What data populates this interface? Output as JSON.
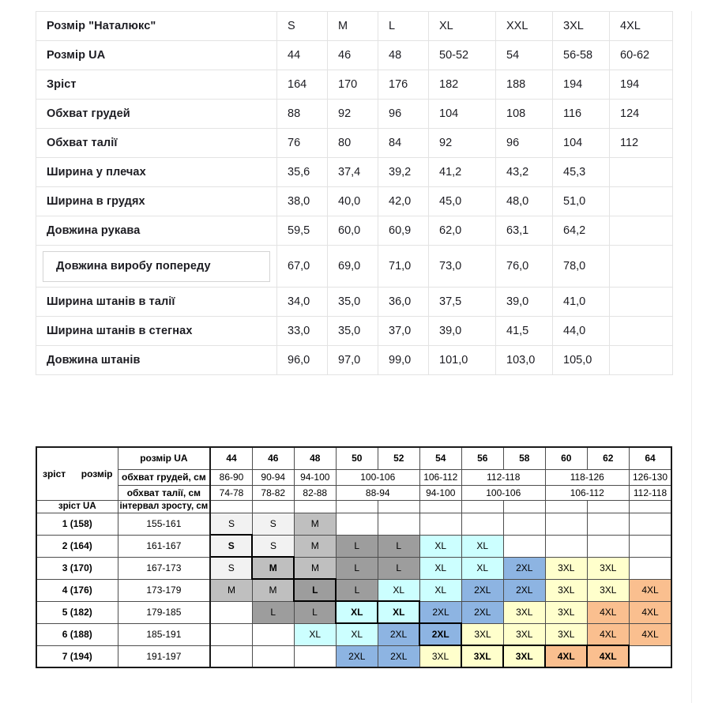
{
  "top_table": {
    "rows": [
      {
        "label": "Розмір \"Наталюкс\"",
        "boxed": false,
        "values": [
          "S",
          "M",
          "L",
          "XL",
          "XXL",
          "3XL",
          "4XL"
        ]
      },
      {
        "label": "Розмір UA",
        "boxed": false,
        "values": [
          "44",
          "46",
          "48",
          "50-52",
          "54",
          "56-58",
          "60-62"
        ]
      },
      {
        "label": "Зріст",
        "boxed": false,
        "values": [
          "164",
          "170",
          "176",
          "182",
          "188",
          "194",
          "194"
        ]
      },
      {
        "label": "Обхват грудей",
        "boxed": false,
        "values": [
          "88",
          "92",
          "96",
          "104",
          "108",
          "116",
          "124"
        ]
      },
      {
        "label": "Обхват талії",
        "boxed": false,
        "values": [
          "76",
          "80",
          "84",
          "92",
          "96",
          "104",
          "112"
        ]
      },
      {
        "label": "Ширина у плечах",
        "boxed": false,
        "values": [
          "35,6",
          "37,4",
          "39,2",
          "41,2",
          "43,2",
          "45,3",
          ""
        ]
      },
      {
        "label": "Ширина в грудях",
        "boxed": false,
        "values": [
          "38,0",
          "40,0",
          "42,0",
          "45,0",
          "48,0",
          "51,0",
          ""
        ]
      },
      {
        "label": "Довжина рукава",
        "boxed": false,
        "values": [
          "59,5",
          "60,0",
          "60,9",
          "62,0",
          "63,1",
          "64,2",
          ""
        ]
      },
      {
        "label": "Довжина виробу попереду",
        "boxed": true,
        "values": [
          "67,0",
          "69,0",
          "71,0",
          "73,0",
          "76,0",
          "78,0",
          ""
        ]
      },
      {
        "label": "Ширина штанів в талії",
        "boxed": false,
        "values": [
          "34,0",
          "35,0",
          "36,0",
          "37,5",
          "39,0",
          "41,0",
          ""
        ]
      },
      {
        "label": "Ширина штанів в стегнах",
        "boxed": false,
        "values": [
          "33,0",
          "35,0",
          "37,0",
          "39,0",
          "41,5",
          "44,0",
          ""
        ]
      },
      {
        "label": "Довжина штанів",
        "boxed": false,
        "values": [
          "96,0",
          "97,0",
          "99,0",
          "101,0",
          "103,0",
          "105,0",
          ""
        ]
      }
    ]
  },
  "matrix_table": {
    "corner_left": "зріст",
    "corner_right": "розмір",
    "size_row_label": "розмір UA",
    "sizes_ua": [
      "44",
      "46",
      "48",
      "50",
      "52",
      "54",
      "56",
      "58",
      "60",
      "62",
      "64"
    ],
    "chest_label": "обхват грудей, см",
    "chest_ranges": [
      {
        "text": "86-90",
        "span": 1
      },
      {
        "text": "90-94",
        "span": 1
      },
      {
        "text": "94-100",
        "span": 1
      },
      {
        "text": "100-106",
        "span": 2
      },
      {
        "text": "106-112",
        "span": 1
      },
      {
        "text": "112-118",
        "span": 2
      },
      {
        "text": "118-126",
        "span": 2
      },
      {
        "text": "126-130",
        "span": 1
      }
    ],
    "waist_label": "обхват талії, см",
    "waist_ranges": [
      {
        "text": "74-78",
        "span": 1
      },
      {
        "text": "78-82",
        "span": 1
      },
      {
        "text": "82-88",
        "span": 1
      },
      {
        "text": "88-94",
        "span": 2
      },
      {
        "text": "94-100",
        "span": 1
      },
      {
        "text": "100-106",
        "span": 2
      },
      {
        "text": "106-112",
        "span": 2
      },
      {
        "text": "112-118",
        "span": 1
      }
    ],
    "height_col_label": "зріст UA",
    "interval_col_label": "інтервал зросту, см",
    "size_colors": {
      "S": "#f2f2f2",
      "M": "#bfbfbf",
      "L": "#9d9d9d",
      "XL": "#ccffff",
      "2XL": "#8db4e2",
      "3XL": "#ffffcc",
      "4XL": "#fabf8f"
    },
    "rows": [
      {
        "height": "1 (158)",
        "interval": "155-161",
        "cells": [
          {
            "t": "S"
          },
          {
            "t": "S"
          },
          {
            "t": "M"
          },
          null,
          null,
          null,
          null,
          null,
          null,
          null,
          null
        ]
      },
      {
        "height": "2 (164)",
        "interval": "161-167",
        "cells": [
          {
            "t": "S",
            "b": true
          },
          {
            "t": "S"
          },
          {
            "t": "M"
          },
          {
            "t": "L"
          },
          {
            "t": "L"
          },
          {
            "t": "XL"
          },
          {
            "t": "XL"
          },
          null,
          null,
          null,
          null
        ]
      },
      {
        "height": "3 (170)",
        "interval": "167-173",
        "cells": [
          {
            "t": "S"
          },
          {
            "t": "M",
            "b": true
          },
          {
            "t": "M"
          },
          {
            "t": "L"
          },
          {
            "t": "L"
          },
          {
            "t": "XL"
          },
          {
            "t": "XL"
          },
          {
            "t": "2XL"
          },
          {
            "t": "3XL"
          },
          {
            "t": "3XL"
          },
          null
        ]
      },
      {
        "height": "4 (176)",
        "interval": "173-179",
        "cells": [
          {
            "t": "M"
          },
          {
            "t": "M"
          },
          {
            "t": "L",
            "b": true
          },
          {
            "t": "L"
          },
          {
            "t": "XL"
          },
          {
            "t": "XL"
          },
          {
            "t": "2XL"
          },
          {
            "t": "2XL"
          },
          {
            "t": "3XL"
          },
          {
            "t": "3XL"
          },
          {
            "t": "4XL"
          }
        ]
      },
      {
        "height": "5 (182)",
        "interval": "179-185",
        "cells": [
          null,
          {
            "t": "L"
          },
          {
            "t": "L"
          },
          {
            "t": "XL",
            "b": true
          },
          {
            "t": "XL",
            "b": true
          },
          {
            "t": "2XL"
          },
          {
            "t": "2XL"
          },
          {
            "t": "3XL"
          },
          {
            "t": "3XL"
          },
          {
            "t": "4XL"
          },
          {
            "t": "4XL"
          }
        ]
      },
      {
        "height": "6 (188)",
        "interval": "185-191",
        "cells": [
          null,
          null,
          {
            "t": "XL"
          },
          {
            "t": "XL"
          },
          {
            "t": "2XL"
          },
          {
            "t": "2XL",
            "b": true
          },
          {
            "t": "3XL"
          },
          {
            "t": "3XL"
          },
          {
            "t": "3XL"
          },
          {
            "t": "4XL"
          },
          {
            "t": "4XL"
          }
        ]
      },
      {
        "height": "7 (194)",
        "interval": "191-197",
        "cells": [
          null,
          null,
          null,
          {
            "t": "2XL"
          },
          {
            "t": "2XL"
          },
          {
            "t": "3XL"
          },
          {
            "t": "3XL",
            "b": true
          },
          {
            "t": "3XL",
            "b": true
          },
          {
            "t": "4XL",
            "b": true
          },
          {
            "t": "4XL",
            "b": true
          },
          null
        ]
      }
    ]
  }
}
